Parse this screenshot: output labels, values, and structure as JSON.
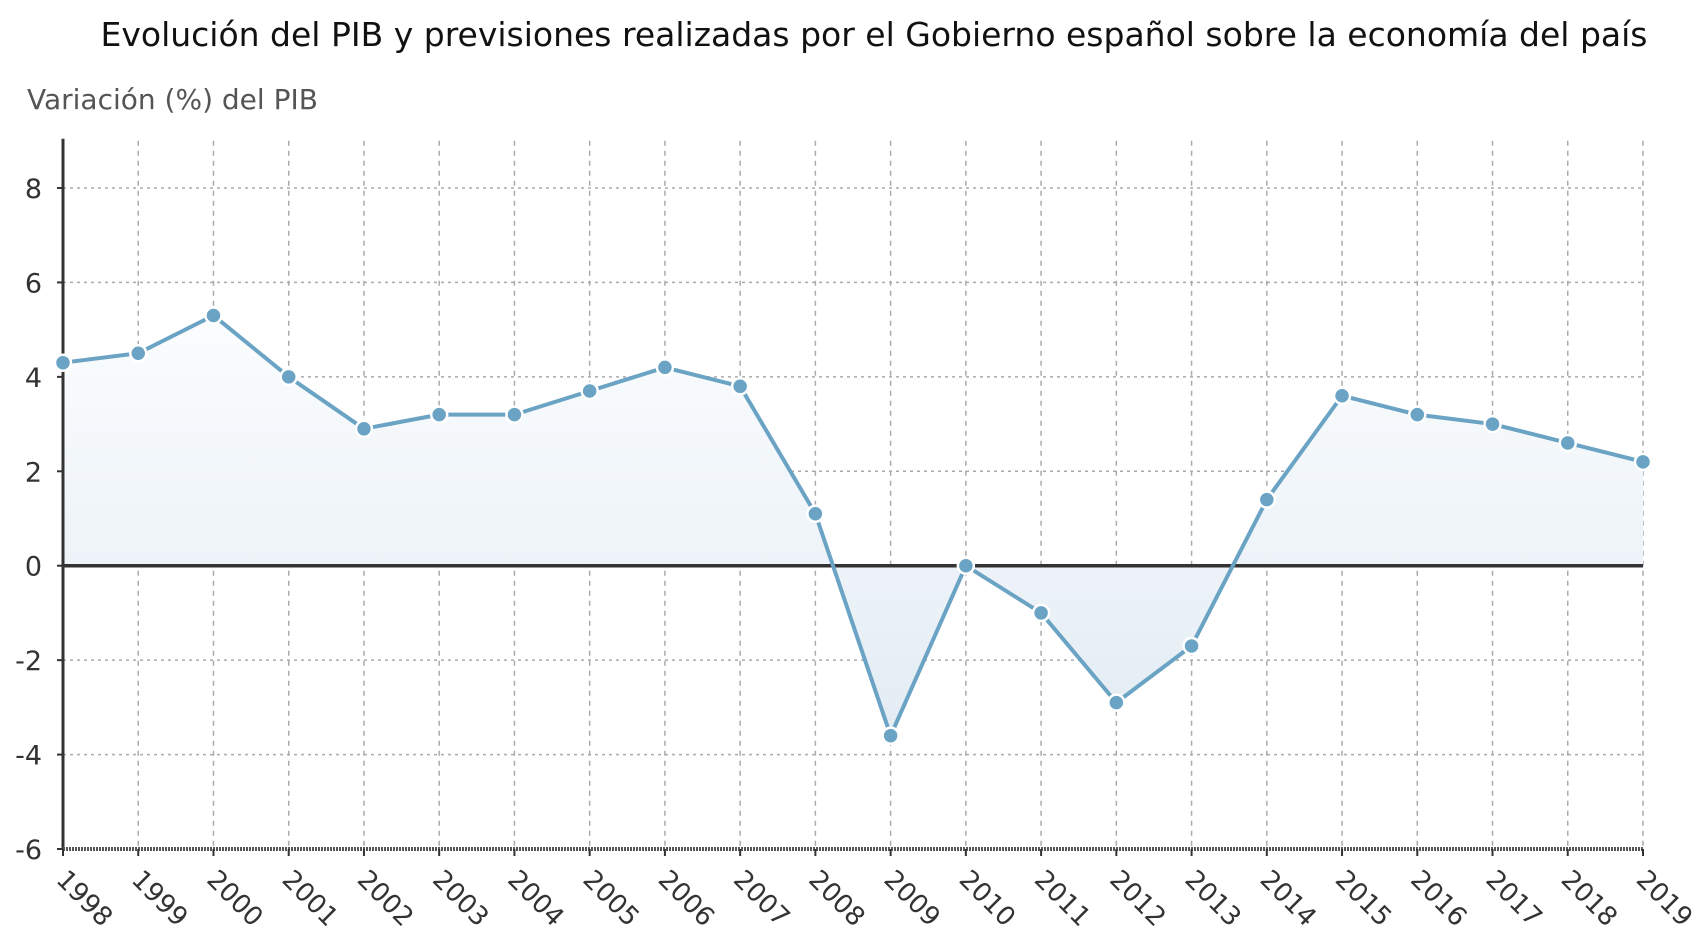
{
  "chart_data": {
    "type": "area",
    "title": "Evolución del PIB y previsiones realizadas por el Gobierno español sobre la economía del país",
    "ylabel": "Variación (%) del PIB",
    "xlabel": "",
    "categories": [
      "1998",
      "1999",
      "2000",
      "2001",
      "2002",
      "2003",
      "2004",
      "2005",
      "2006",
      "2007",
      "2008",
      "2009",
      "2010",
      "2011",
      "2012",
      "2013",
      "2014",
      "2015",
      "2016",
      "2017",
      "2018",
      "2019"
    ],
    "series": [
      {
        "name": "Variación (%) del PIB",
        "values": [
          4.3,
          4.5,
          5.3,
          4.0,
          2.9,
          3.2,
          3.2,
          3.7,
          4.2,
          3.8,
          1.1,
          -3.6,
          0.0,
          -1.0,
          -2.9,
          -1.7,
          1.4,
          3.6,
          3.2,
          3.0,
          2.6,
          2.2
        ]
      }
    ],
    "yticks": [
      "8",
      "6",
      "4",
      "2",
      "0",
      "-2",
      "-4",
      "-6"
    ],
    "ylim": [
      -6,
      9
    ],
    "grid": true,
    "colors": {
      "line": "#6aa3c4",
      "fill_top": "#f7fafd",
      "fill_bottom": "#e4edf5",
      "zero_line": "#333333"
    }
  }
}
